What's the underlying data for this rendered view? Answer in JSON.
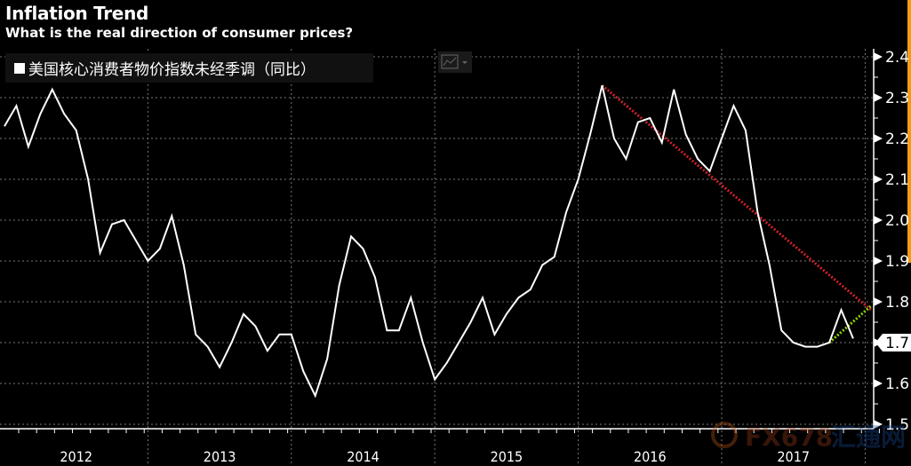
{
  "chart_data": {
    "type": "line",
    "title": "Inflation Trend",
    "subtitle": "What is the real direction of consumer prices?",
    "legend": [
      "美国核心消费者物价指数未经季调（同比）"
    ],
    "legend_position": "top-left",
    "xlabel": "",
    "ylabel": "",
    "ylim": [
      1.5,
      2.4
    ],
    "yticks": [
      "1.5",
      "1.6",
      "1.7",
      "1.8",
      "1.9",
      "2.0",
      "2.1",
      "2.2",
      "2.3",
      "2.4"
    ],
    "xticks": [
      "2012",
      "2013",
      "2014",
      "2015",
      "2016",
      "2017"
    ],
    "grid": true,
    "last_value_label": "1.7",
    "series": [
      {
        "name": "美国核心消费者物价指数未经季调（同比）",
        "color": "#ffffff",
        "start": "2012-01",
        "frequency": "monthly",
        "values": [
          2.23,
          2.28,
          2.18,
          2.26,
          2.32,
          2.26,
          2.22,
          2.1,
          1.92,
          1.99,
          2.0,
          1.95,
          1.9,
          1.93,
          2.01,
          1.89,
          1.72,
          1.69,
          1.64,
          1.7,
          1.77,
          1.74,
          1.68,
          1.72,
          1.72,
          1.63,
          1.57,
          1.66,
          1.84,
          1.96,
          1.93,
          1.86,
          1.73,
          1.73,
          1.81,
          1.7,
          1.61,
          1.65,
          1.7,
          1.75,
          1.81,
          1.72,
          1.77,
          1.81,
          1.83,
          1.89,
          1.91,
          2.02,
          2.1,
          2.21,
          2.33,
          2.2,
          2.15,
          2.24,
          2.25,
          2.19,
          2.32,
          2.21,
          2.15,
          2.12,
          2.2,
          2.28,
          2.22,
          2.02,
          1.89,
          1.73,
          1.7,
          1.69,
          1.69,
          1.7,
          1.78,
          1.71
        ]
      }
    ],
    "trendlines": [
      {
        "name": "downtrend",
        "color": "#d0202a",
        "from": {
          "month_index": 50,
          "value": 2.33
        },
        "to": {
          "month_index": 72.5,
          "value": 1.78
        }
      },
      {
        "name": "uptrend",
        "color": "#8fd400",
        "from": {
          "month_index": 69,
          "value": 1.7
        },
        "to": {
          "month_index": 72.5,
          "value": 1.79
        }
      }
    ]
  },
  "watermark": "FX678 汇通网"
}
